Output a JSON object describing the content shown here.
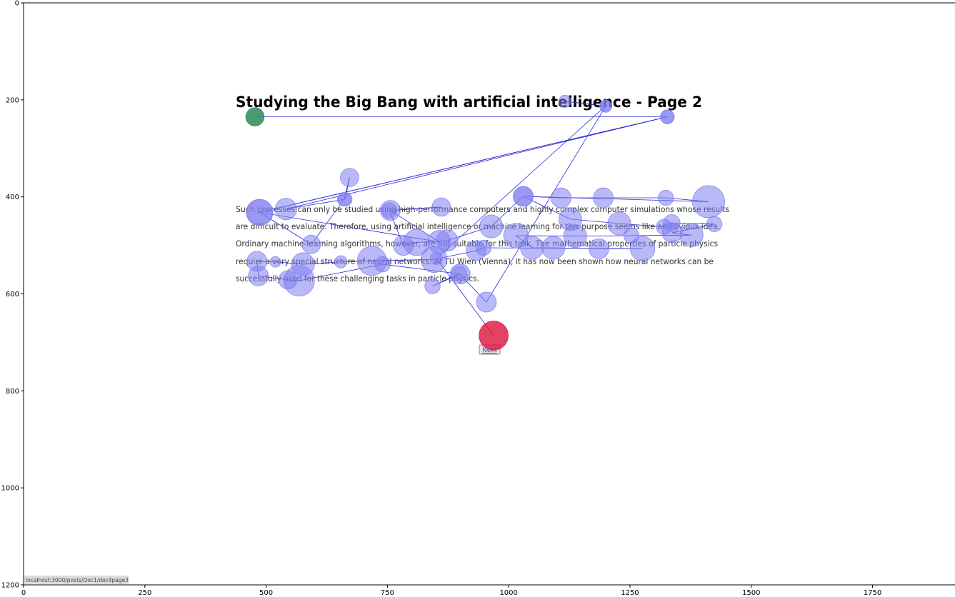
{
  "page": {
    "title": "Studying the Big Bang with artificial intelligence - Page 2",
    "paragraph_lines": [
      "Such processes can only be studied using high-performance computers and highly complex computer simulations whose results",
      "are difficult to evaluate. Therefore, using artificial intelligence or machine learning for this purpose seems like an obvious idea.",
      "Ordinary machine-learning algorithms, however, are not suitable for this task. The mathematical properties of particle physics",
      "require a very special structure of neural networks. At TU Wien (Vienna), it has now been shown how neural networks can be",
      "successfully used for these challenging tasks in particle physics."
    ],
    "next_label": "Next",
    "status_url": "localhost:3000/posts/Doc1/doc4page3"
  },
  "colors": {
    "fixation": "#8080f0",
    "saccade": "#2a2ad8",
    "start": "#2e8b57",
    "end": "#dc143c"
  },
  "chart_data": {
    "type": "scatter",
    "title": "",
    "xlabel": "",
    "ylabel": "",
    "xlim": [
      0,
      1920
    ],
    "ylim": [
      1200,
      0
    ],
    "xticks": [
      0,
      250,
      500,
      750,
      1000,
      1250,
      1500,
      1750
    ],
    "yticks": [
      0,
      200,
      400,
      600,
      800,
      1000,
      1200
    ],
    "grid": false,
    "series": [
      {
        "points": [
          {
            "x": 477,
            "y": 235,
            "r": 12,
            "role": "start"
          },
          {
            "x": 1327,
            "y": 235,
            "r": 9
          },
          {
            "x": 486,
            "y": 432,
            "r": 17
          },
          {
            "x": 1327,
            "y": 235,
            "r": 9
          },
          {
            "x": 541,
            "y": 425,
            "r": 14
          },
          {
            "x": 663,
            "y": 405,
            "r": 9
          },
          {
            "x": 672,
            "y": 360,
            "r": 12
          },
          {
            "x": 661,
            "y": 405,
            "r": 9
          },
          {
            "x": 593,
            "y": 498,
            "r": 12
          },
          {
            "x": 487,
            "y": 432,
            "r": 17
          },
          {
            "x": 857,
            "y": 493,
            "r": 15
          },
          {
            "x": 756,
            "y": 428,
            "r": 13
          },
          {
            "x": 861,
            "y": 421,
            "r": 12
          },
          {
            "x": 754,
            "y": 428,
            "r": 10
          },
          {
            "x": 783,
            "y": 500,
            "r": 13
          },
          {
            "x": 810,
            "y": 494,
            "r": 17
          },
          {
            "x": 873,
            "y": 490,
            "r": 14
          },
          {
            "x": 964,
            "y": 461,
            "r": 15
          },
          {
            "x": 1030,
            "y": 399,
            "r": 13
          },
          {
            "x": 1412,
            "y": 410,
            "r": 21
          },
          {
            "x": 1324,
            "y": 402,
            "r": 10
          },
          {
            "x": 1195,
            "y": 402,
            "r": 13
          },
          {
            "x": 1108,
            "y": 402,
            "r": 13
          },
          {
            "x": 1030,
            "y": 399,
            "r": 13
          },
          {
            "x": 1127,
            "y": 446,
            "r": 15
          },
          {
            "x": 1228,
            "y": 455,
            "r": 15
          },
          {
            "x": 1320,
            "y": 462,
            "r": 10
          },
          {
            "x": 1336,
            "y": 454,
            "r": 11
          },
          {
            "x": 1424,
            "y": 456,
            "r": 10
          },
          {
            "x": 1337,
            "y": 474,
            "r": 13
          },
          {
            "x": 1377,
            "y": 479,
            "r": 15
          },
          {
            "x": 1253,
            "y": 480,
            "r": 10
          },
          {
            "x": 1137,
            "y": 481,
            "r": 15
          },
          {
            "x": 1015,
            "y": 480,
            "r": 16
          },
          {
            "x": 1048,
            "y": 505,
            "r": 15
          },
          {
            "x": 1092,
            "y": 505,
            "r": 15
          },
          {
            "x": 1186,
            "y": 507,
            "r": 13
          },
          {
            "x": 1276,
            "y": 507,
            "r": 16
          },
          {
            "x": 948,
            "y": 505,
            "r": 10
          },
          {
            "x": 933,
            "y": 511,
            "r": 13
          },
          {
            "x": 846,
            "y": 529,
            "r": 17
          },
          {
            "x": 718,
            "y": 532,
            "r": 19
          },
          {
            "x": 654,
            "y": 534,
            "r": 8
          },
          {
            "x": 576,
            "y": 539,
            "r": 15
          },
          {
            "x": 519,
            "y": 534,
            "r": 7
          },
          {
            "x": 481,
            "y": 533,
            "r": 13
          },
          {
            "x": 484,
            "y": 563,
            "r": 13
          },
          {
            "x": 545,
            "y": 571,
            "r": 12
          },
          {
            "x": 568,
            "y": 573,
            "r": 20
          },
          {
            "x": 740,
            "y": 539,
            "r": 10
          },
          {
            "x": 900,
            "y": 559,
            "r": 13
          },
          {
            "x": 843,
            "y": 584,
            "r": 10
          },
          {
            "x": 898,
            "y": 558,
            "r": 10
          },
          {
            "x": 954,
            "y": 617,
            "r": 13
          },
          {
            "x": 1200,
            "y": 213,
            "r": 8
          },
          {
            "x": 1116,
            "y": 203,
            "r": 8
          },
          {
            "x": 1199,
            "y": 213,
            "r": 7
          },
          {
            "x": 851,
            "y": 527,
            "r": 8
          },
          {
            "x": 969,
            "y": 686,
            "r": 19,
            "role": "end"
          }
        ]
      }
    ]
  }
}
